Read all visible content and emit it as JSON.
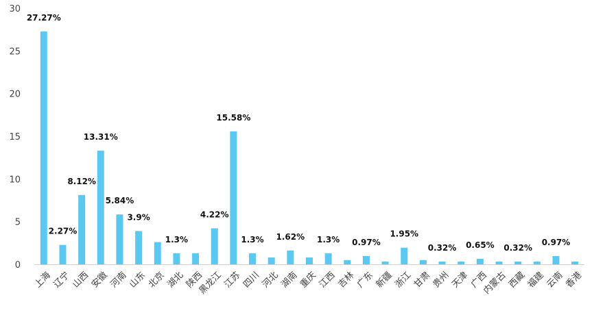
{
  "chart_data": {
    "type": "bar",
    "title": "",
    "xlabel": "",
    "ylabel": "",
    "ylim": [
      0,
      30
    ],
    "yticks": [
      0,
      5,
      10,
      15,
      20,
      25,
      30
    ],
    "grid": false,
    "bar_color": "#5bc8f2",
    "categories": [
      "上海",
      "辽宁",
      "山西",
      "安徽",
      "河南",
      "山东",
      "北京",
      "湖北",
      "陕西",
      "黑龙江",
      "江苏",
      "四川",
      "河北",
      "湖南",
      "重庆",
      "江西",
      "吉林",
      "广东",
      "新疆",
      "浙江",
      "甘肃",
      "贵州",
      "天津",
      "广西",
      "内蒙古",
      "西藏",
      "福建",
      "云南",
      "香港"
    ],
    "values": [
      27.27,
      2.27,
      8.12,
      13.31,
      5.84,
      3.9,
      2.6,
      1.3,
      1.3,
      4.22,
      15.58,
      1.3,
      0.8,
      1.62,
      0.8,
      1.3,
      0.5,
      0.97,
      0.32,
      1.95,
      0.5,
      0.32,
      0.32,
      0.65,
      0.32,
      0.32,
      0.32,
      0.97,
      0.32
    ],
    "data_labels": [
      "27.27%",
      "2.27%",
      "8.12%",
      "13.31%",
      "5.84%",
      "3.9%",
      "",
      "1.3%",
      "",
      "4.22%",
      "15.58%",
      "1.3%",
      "",
      "1.62%",
      "",
      "1.3%",
      "",
      "0.97%",
      "",
      "1.95%",
      "",
      "0.32%",
      "",
      "0.65%",
      "",
      "0.32%",
      "",
      "0.97%",
      ""
    ]
  }
}
